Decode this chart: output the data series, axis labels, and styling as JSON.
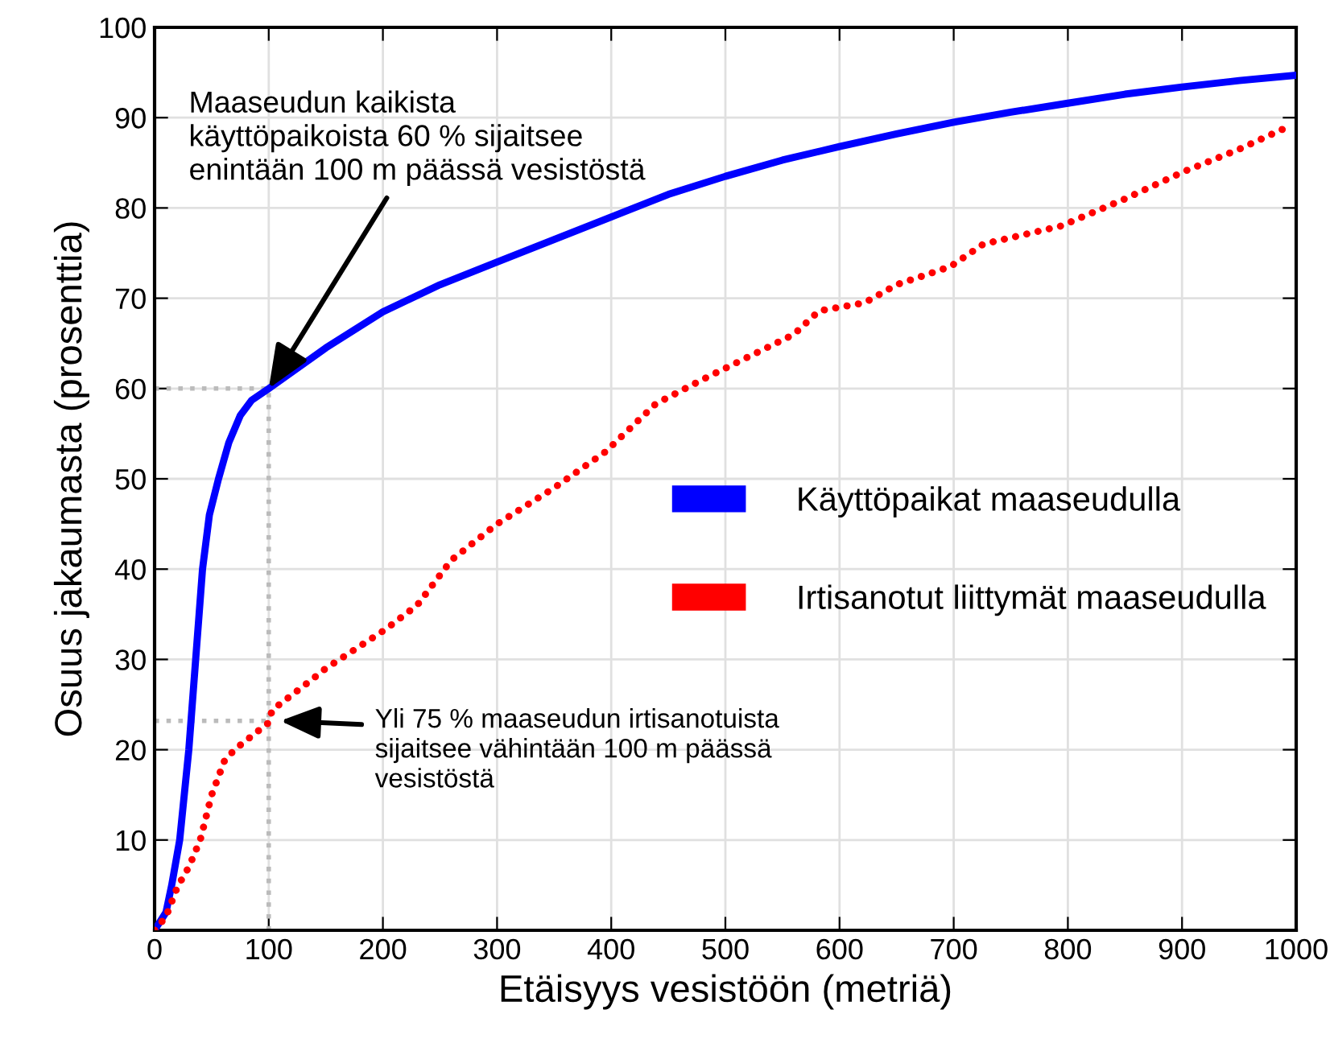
{
  "chart_data": {
    "type": "line",
    "xlabel": "Etäisyys vesistöön (metriä)",
    "ylabel": "Osuus jakaumasta (prosenttia)",
    "xlim": [
      0,
      1000
    ],
    "ylim": [
      0,
      100
    ],
    "xticks": [
      0,
      100,
      200,
      300,
      400,
      500,
      600,
      700,
      800,
      900,
      1000
    ],
    "yticks": [
      10,
      20,
      30,
      40,
      50,
      60,
      70,
      80,
      90,
      100
    ],
    "grid": true,
    "legend": "right",
    "series": [
      {
        "name": "Käyttöpaikat maaseudulla",
        "color": "#0000ff",
        "line_style": "solid",
        "x": [
          0,
          10,
          15,
          22,
          30,
          36,
          42,
          48,
          56,
          65,
          75,
          85,
          100,
          150,
          200,
          250,
          300,
          350,
          400,
          450,
          500,
          550,
          600,
          650,
          700,
          750,
          800,
          850,
          900,
          950,
          1000
        ],
        "values": [
          0,
          2,
          5,
          10,
          20,
          30,
          40,
          46,
          50,
          54,
          57,
          58.7,
          60,
          64.5,
          68.5,
          71.5,
          74,
          76.5,
          79,
          81.5,
          83.5,
          85.3,
          86.8,
          88.2,
          89.5,
          90.6,
          91.6,
          92.6,
          93.4,
          94.1,
          94.7
        ]
      },
      {
        "name": "Irtisanotut liittymät maaseudulla",
        "color": "#ff0000",
        "line_style": "dotted",
        "x": [
          0,
          10,
          20,
          30,
          40,
          50,
          61,
          70,
          80,
          90,
          100,
          103,
          130,
          150,
          202,
          230,
          260,
          300,
          350,
          395,
          439,
          480,
          520,
          560,
          582,
          622,
          650,
          697,
          726,
          760,
          794,
          850,
          901,
          950,
          993
        ],
        "values": [
          0,
          1.5,
          4.8,
          7,
          10,
          15,
          18.7,
          20,
          21,
          22,
          23,
          24.4,
          27,
          29,
          33.3,
          36,
          41,
          45,
          49,
          53,
          58.3,
          61,
          63.5,
          66,
          68.6,
          69.5,
          71.5,
          73.5,
          76,
          77,
          78,
          81,
          84,
          86.5,
          89
        ]
      },
      {
        "color": "#bbbbbb",
        "line_style": "dotted",
        "x": [
          0,
          100,
          100
        ],
        "values": [
          60,
          60,
          0
        ]
      },
      {
        "color": "#bbbbbb",
        "line_style": "dotted",
        "x": [
          0,
          100
        ],
        "values": [
          23.2,
          23.2
        ]
      }
    ],
    "annotations": [
      {
        "text": "Maaseudun kaikista\nkäyttöpaikoista 60 % sijaitsee\nenintään 100 m päässä vesistöstä",
        "x": 100,
        "y": 60
      },
      {
        "text": "Yli 75 % maaseudun irtisanotuista\nsijaitsee vähintään 100 m päässä\nvesistöstä",
        "x": 110,
        "y": 23.2
      }
    ]
  }
}
